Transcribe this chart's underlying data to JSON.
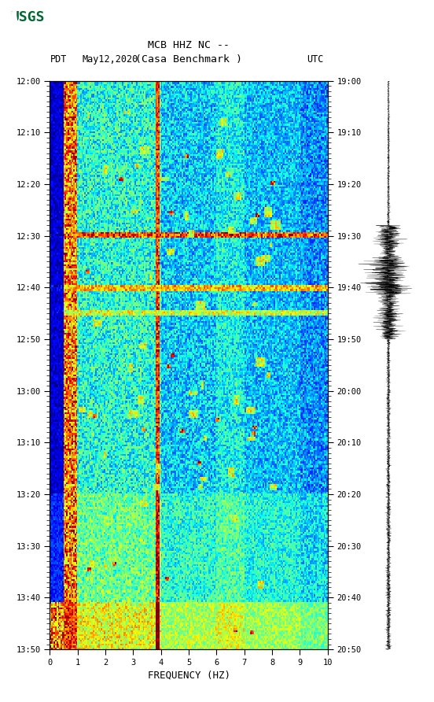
{
  "title_line1": "MCB HHZ NC --",
  "title_line2": "(Casa Benchmark )",
  "label_left": "PDT",
  "label_date": "May12,2020",
  "label_right": "UTC",
  "left_times": [
    "12:00",
    "12:10",
    "12:20",
    "12:30",
    "12:40",
    "12:50",
    "13:00",
    "13:10",
    "13:20",
    "13:30",
    "13:40",
    "13:50"
  ],
  "right_times": [
    "19:00",
    "19:10",
    "19:20",
    "19:30",
    "19:40",
    "19:50",
    "20:00",
    "20:10",
    "20:20",
    "20:30",
    "20:40",
    "20:50"
  ],
  "freq_min": 0,
  "freq_max": 10,
  "freq_ticks": [
    0,
    1,
    2,
    3,
    4,
    5,
    6,
    7,
    8,
    9,
    10
  ],
  "freq_label": "FREQUENCY (HZ)",
  "background_color": "#ffffff",
  "spectrogram_cmap": "jet",
  "logo_color": "#006633",
  "fig_width": 5.52,
  "fig_height": 8.92,
  "fig_dpi": 100
}
